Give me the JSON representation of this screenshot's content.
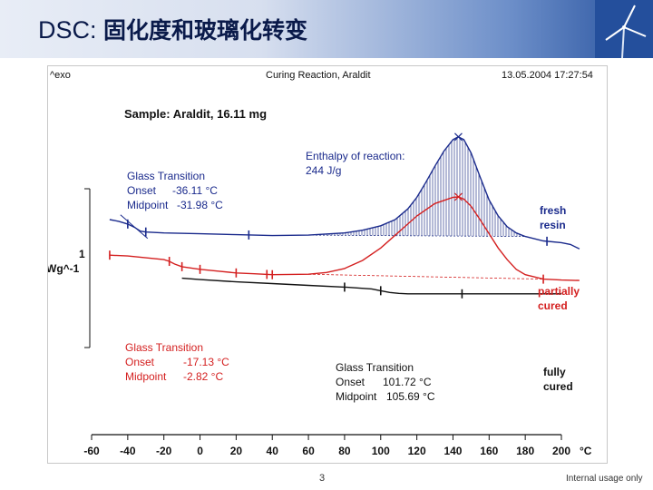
{
  "header": {
    "title_prefix": "DSC:",
    "title_cn": "固化度和玻璃化转变"
  },
  "footer": {
    "page_number": "3",
    "note": "Internal usage only"
  },
  "colors": {
    "fresh": "#1a2a8c",
    "partial": "#d42020",
    "cured": "#111111",
    "hatch": "#2a3a8c"
  },
  "chart_data": {
    "type": "line",
    "top_left_label": "^exo",
    "title": "Curing Reaction, Araldit",
    "timestamp": "13.05.2004 17:27:54",
    "sample": "Sample: Araldit, 16.11 mg",
    "scale": {
      "value": "1",
      "unit": "Wg^-1"
    },
    "xunit": "°C",
    "xlim": [
      -60,
      200
    ],
    "xticks": [
      -60,
      -40,
      -20,
      0,
      20,
      40,
      60,
      80,
      100,
      120,
      140,
      160,
      180,
      200
    ],
    "series": [
      {
        "name": "fresh resin",
        "label_lines": [
          "fresh",
          "resin"
        ],
        "x": [
          -50,
          -45,
          -40,
          -36,
          -33,
          -30,
          -20,
          0,
          20,
          40,
          60,
          80,
          90,
          100,
          108,
          115,
          120,
          125,
          130,
          135,
          140,
          143,
          146,
          150,
          155,
          160,
          165,
          170,
          175,
          180,
          190,
          200,
          205,
          210
        ],
        "y": [
          4.8,
          4.6,
          4.3,
          3.9,
          3.5,
          3.4,
          3.3,
          3.2,
          3.1,
          3.0,
          3.05,
          3.3,
          3.6,
          4.1,
          4.8,
          6.0,
          7.3,
          9.0,
          10.8,
          12.5,
          13.8,
          14.1,
          13.8,
          12.3,
          9.6,
          7.0,
          5.2,
          4.0,
          3.3,
          2.9,
          2.4,
          2.2,
          2.0,
          1.5
        ],
        "markers": [
          -40,
          -30,
          27,
          192
        ]
      },
      {
        "name": "partially cured",
        "label_lines": [
          "partially",
          "cured"
        ],
        "x": [
          -50,
          -40,
          -30,
          -20,
          -17,
          -14,
          -10,
          0,
          10,
          20,
          30,
          40,
          60,
          70,
          80,
          90,
          100,
          110,
          120,
          130,
          140,
          143,
          146,
          150,
          155,
          160,
          165,
          170,
          175,
          180,
          190,
          200,
          210
        ],
        "y": [
          0.8,
          0.7,
          0.5,
          0.3,
          0.1,
          -0.2,
          -0.5,
          -0.8,
          -1.0,
          -1.2,
          -1.3,
          -1.4,
          -1.35,
          -1.15,
          -0.7,
          0.2,
          1.6,
          3.4,
          5.2,
          6.6,
          7.3,
          7.35,
          7.1,
          6.3,
          4.8,
          3.2,
          1.6,
          0.3,
          -0.8,
          -1.4,
          -1.9,
          -2.0,
          -2.05
        ],
        "markers": [
          -50,
          -17,
          -10,
          0,
          20,
          37,
          40,
          190
        ]
      },
      {
        "name": "fully cured",
        "label_lines": [
          "fully",
          "cured"
        ],
        "x": [
          -10,
          0,
          20,
          40,
          60,
          80,
          95,
          100,
          105,
          110,
          115,
          120,
          140,
          160,
          180,
          200
        ],
        "y": [
          -1.8,
          -1.95,
          -2.2,
          -2.4,
          -2.6,
          -2.8,
          -3.0,
          -3.2,
          -3.4,
          -3.5,
          -3.55,
          -3.55,
          -3.55,
          -3.55,
          -3.55,
          -3.55
        ],
        "markers": [
          80,
          100,
          145
        ]
      }
    ],
    "annotations": {
      "enthalpy": {
        "title": "Enthalpy of reaction:",
        "value": "244 J/g"
      },
      "gt_fresh": {
        "title": "Glass Transition",
        "onset_label": "Onset",
        "onset_value": "-36.11 °C",
        "midpoint_label": "Midpoint",
        "midpoint_value": "-31.98 °C"
      },
      "gt_partial": {
        "title": "Glass Transition",
        "onset_label": "Onset",
        "onset_value": "-17.13 °C",
        "midpoint_label": "Midpoint",
        "midpoint_value": "-2.82 °C"
      },
      "gt_cured": {
        "title": "Glass Transition",
        "onset_label": "Onset",
        "onset_value": "101.72 °C",
        "midpoint_label": "Midpoint",
        "midpoint_value": "105.69 °C"
      }
    }
  }
}
